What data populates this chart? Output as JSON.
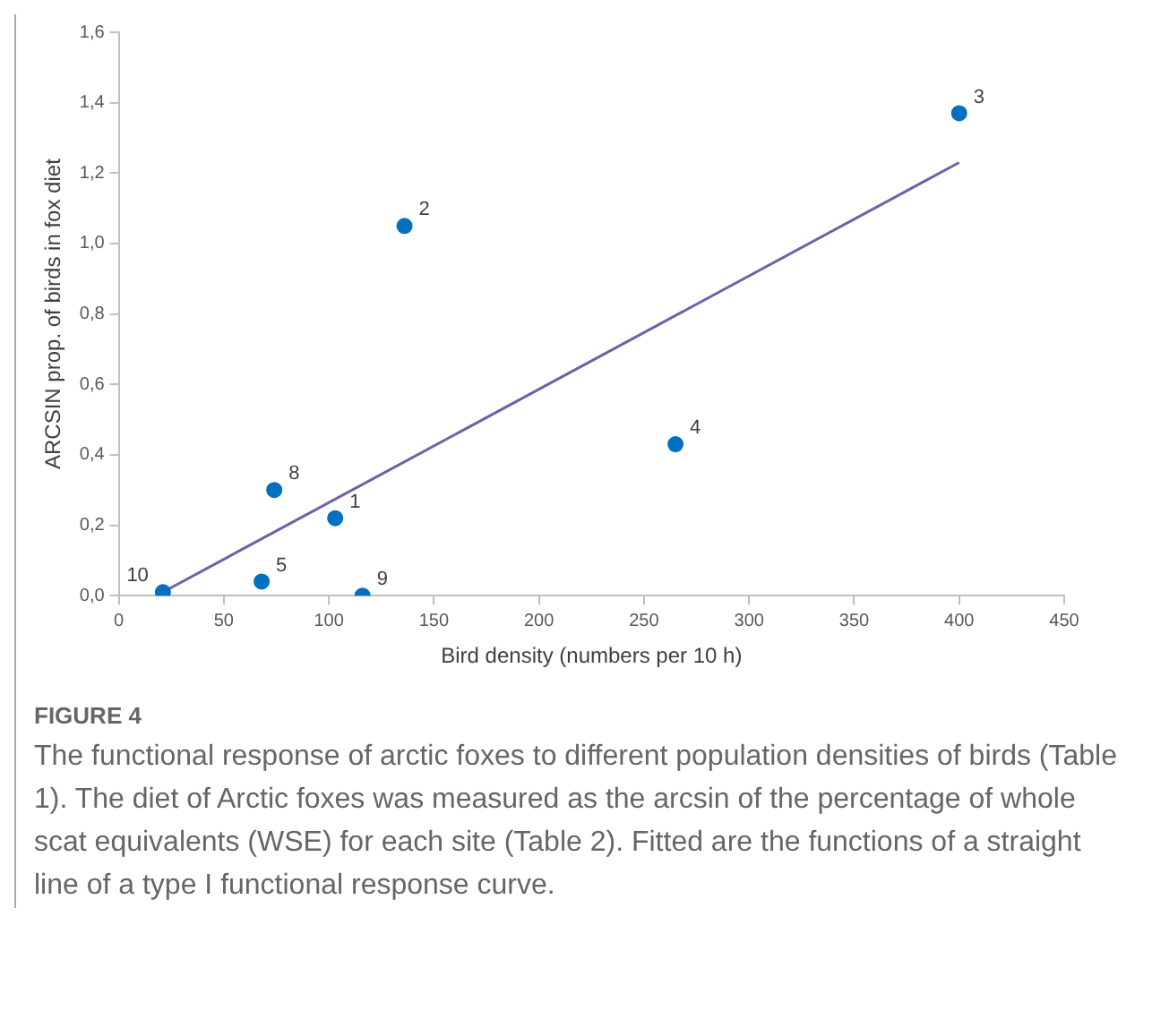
{
  "chart_data": {
    "type": "scatter",
    "xlabel": "Bird density (numbers per 10 h)",
    "ylabel": "ARCSIN prop. of birds in fox diet",
    "series": [
      {
        "color": "#0070c0",
        "marker": "circle",
        "x": [
          103,
          136,
          400,
          265,
          68,
          74,
          116,
          21
        ],
        "values": [
          0.22,
          1.05,
          1.37,
          0.43,
          0.04,
          0.3,
          0.0,
          0.01
        ]
      },
      {
        "type": "line",
        "color": "#7060a8",
        "marker": "none",
        "x": [
          21,
          400
        ],
        "values": [
          0.01,
          1.23
        ]
      }
    ],
    "xlim": [
      0,
      450
    ],
    "xticks": [
      0,
      50,
      100,
      150,
      200,
      250,
      300,
      350,
      400,
      450
    ],
    "ylim": [
      0,
      1.6
    ],
    "yticks": [
      {
        "value": 0,
        "label": "0,0"
      },
      {
        "value": 0.2,
        "label": "0,2"
      },
      {
        "value": 0.4,
        "label": "0,4"
      },
      {
        "value": 0.6,
        "label": "0,6"
      },
      {
        "value": 0.8,
        "label": "0,8"
      },
      {
        "value": 1.0,
        "label": "1,0"
      },
      {
        "value": 1.2,
        "label": "1,2"
      },
      {
        "value": 1.4,
        "label": "1,4"
      },
      {
        "value": 1.6,
        "label": "1,6"
      }
    ],
    "grid": false,
    "legend": false,
    "annotations": [
      {
        "text": "1",
        "x": 103,
        "y": 0.22
      },
      {
        "text": "2",
        "x": 136,
        "y": 1.05
      },
      {
        "text": "3",
        "x": 400,
        "y": 1.37
      },
      {
        "text": "4",
        "x": 265,
        "y": 0.43
      },
      {
        "text": "5",
        "x": 68,
        "y": 0.04
      },
      {
        "text": "8",
        "x": 74,
        "y": 0.3
      },
      {
        "text": "9",
        "x": 116,
        "y": 0.0
      },
      {
        "text": "10",
        "x": 21,
        "y": 0.01
      },
      "FIGURE 4",
      "The functional response of arctic foxes to different population densities of birds (Table 1). The diet of Arctic foxes was measured as the arcsin of the percentage of whole scat equivalents (WSE) for each site (Table 2). Fitted are the functions of a straight line of a type I functional response curve."
    ]
  }
}
